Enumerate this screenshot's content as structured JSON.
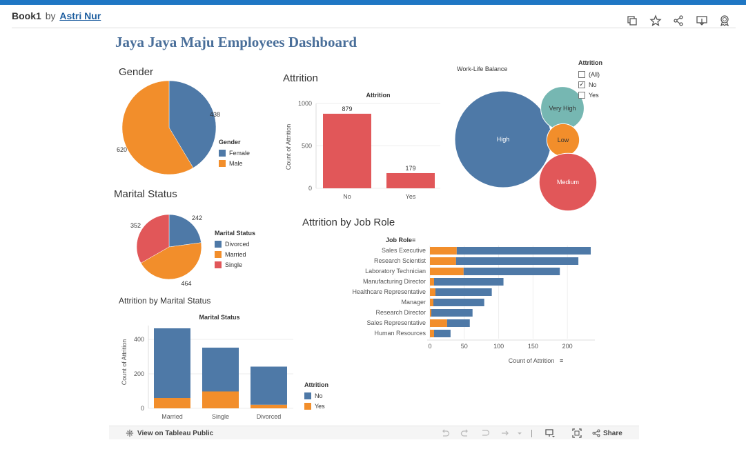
{
  "header": {
    "book": "Book1",
    "by": "by",
    "author": "Astri Nur",
    "icons": [
      "duplicate-icon",
      "star-icon",
      "share-icon",
      "download-icon",
      "badge-icon"
    ]
  },
  "dashboard": {
    "title": "Jaya Jaya Maju Employees Dashboard"
  },
  "colors": {
    "blue": "#4e79a7",
    "orange": "#f28e2b",
    "red": "#e15759",
    "teal": "#76b7b2",
    "title": "#4a6f9a"
  },
  "gender": {
    "title": "Gender",
    "legend_title": "Gender",
    "legend": [
      "Female",
      "Male"
    ]
  },
  "attrition": {
    "title": "Attrition",
    "chart_title": "Attrition",
    "ylabel": "Count of Attrition"
  },
  "worklife": {
    "title": "Work-Life Balance"
  },
  "filter": {
    "title": "Attrition",
    "options": [
      {
        "label": "(All)",
        "checked": false
      },
      {
        "label": "No",
        "checked": true
      },
      {
        "label": "Yes",
        "checked": false
      }
    ]
  },
  "marital": {
    "title": "Marital Status",
    "legend_title": "Marital Status",
    "legend": [
      "Divorced",
      "Married",
      "Single"
    ]
  },
  "jobrole": {
    "title": "Attrition by Job Role",
    "header": "Job Role",
    "xlabel": "Count of Attrition"
  },
  "marital_attrition": {
    "title": "Attrition by Marital Status",
    "chart_title": "Marital Status",
    "ylabel": "Count of Attrition",
    "legend_title": "Attrition",
    "legend": [
      "No",
      "Yes"
    ]
  },
  "footer": {
    "view": "View on Tableau Public",
    "share": "Share"
  },
  "chart_data": [
    {
      "type": "pie",
      "categories": [
        "Female",
        "Male"
      ],
      "values": [
        438,
        620
      ]
    },
    {
      "type": "bar",
      "categories": [
        "No",
        "Yes"
      ],
      "values": [
        879,
        179
      ],
      "title": "Attrition",
      "ylabel": "Count of Attrition",
      "ylim": [
        0,
        1000
      ],
      "yticks": [
        0,
        500,
        1000
      ]
    },
    {
      "type": "scatter",
      "categories": [
        "High",
        "Very High",
        "Low",
        "Medium"
      ],
      "values": [
        526,
        106,
        60,
        187
      ]
    },
    {
      "type": "pie",
      "categories": [
        "Divorced",
        "Married",
        "Single"
      ],
      "values": [
        242,
        464,
        352
      ]
    },
    {
      "type": "bar",
      "orientation": "horizontal",
      "stacked": true,
      "categories": [
        "Sales Executive",
        "Research Scientist",
        "Laboratory Technician",
        "Manufacturing Director",
        "Healthcare Representative",
        "Manager",
        "Research Director",
        "Sales Representative",
        "Human Resources"
      ],
      "series": [
        {
          "name": "Yes",
          "values": [
            39,
            38,
            49,
            6,
            8,
            5,
            2,
            25,
            6
          ]
        },
        {
          "name": "No",
          "values": [
            195,
            178,
            140,
            101,
            82,
            74,
            60,
            33,
            24
          ]
        }
      ],
      "xlabel": "Count of Attrition",
      "xlim": [
        0,
        240
      ],
      "xticks": [
        0,
        50,
        100,
        150,
        200
      ]
    },
    {
      "type": "bar",
      "stacked": true,
      "categories": [
        "Married",
        "Single",
        "Divorced"
      ],
      "series": [
        {
          "name": "No",
          "values": [
            404,
            254,
            221
          ]
        },
        {
          "name": "Yes",
          "values": [
            60,
            98,
            21
          ]
        }
      ],
      "title": "Marital Status",
      "ylabel": "Count of Attrition",
      "ylim": [
        0,
        480
      ],
      "yticks": [
        0,
        200,
        400
      ]
    }
  ]
}
